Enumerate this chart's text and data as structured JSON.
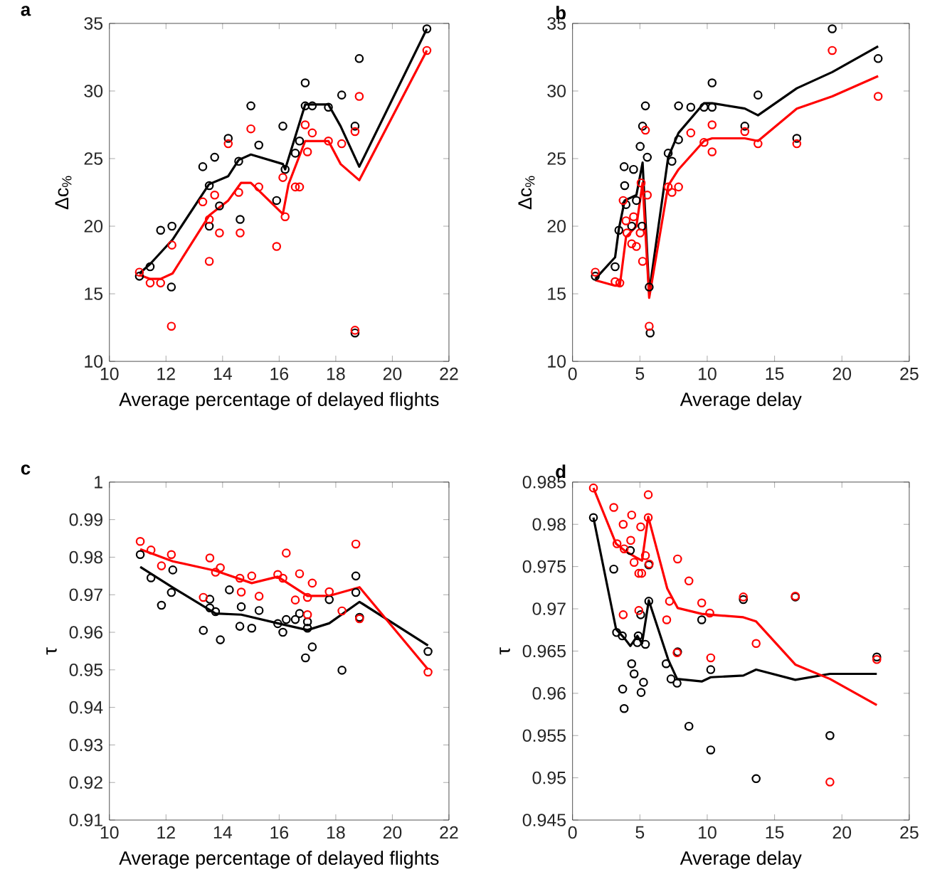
{
  "chart_data": [
    {
      "type": "scatter",
      "title": "a",
      "xlabel": "Average percentage of delayed flights",
      "ylabel": "Δc$_{%}$",
      "xlim": [
        10,
        22
      ],
      "xticks": [
        10,
        12,
        14,
        16,
        18,
        20,
        22
      ],
      "ylim": [
        10,
        35
      ],
      "yticks": [
        10,
        15,
        20,
        25,
        30,
        35
      ],
      "series": [
        {
          "marker": "circle",
          "color": "#000000",
          "x": [
            11.06,
            11.44,
            11.81,
            12.19,
            12.21,
            13.3,
            13.53,
            13.53,
            13.72,
            13.89,
            14.2,
            14.57,
            14.62,
            15.0,
            15.28,
            15.91,
            16.13,
            16.21,
            16.57,
            16.72,
            16.92,
            16.92,
            17.17,
            17.74,
            18.21,
            18.68,
            18.68,
            18.83,
            21.22
          ],
          "values": [
            16.3,
            17.0,
            19.7,
            15.5,
            20.0,
            24.4,
            23.0,
            20.0,
            25.1,
            21.5,
            26.5,
            24.8,
            20.5,
            28.9,
            26.0,
            21.9,
            27.4,
            24.2,
            25.4,
            26.3,
            30.6,
            28.9,
            28.9,
            28.8,
            29.7,
            27.4,
            12.1,
            32.4,
            34.6
          ]
        },
        {
          "marker": "circle",
          "color": "#ff0000",
          "x": [
            11.06,
            11.44,
            11.81,
            12.19,
            12.21,
            13.3,
            13.53,
            13.53,
            13.72,
            13.89,
            14.2,
            14.57,
            14.62,
            15.0,
            15.28,
            15.91,
            16.13,
            16.21,
            16.57,
            16.72,
            16.92,
            17.0,
            17.17,
            17.74,
            18.21,
            18.68,
            18.68,
            18.83,
            21.22
          ],
          "values": [
            16.6,
            15.8,
            15.8,
            12.6,
            18.6,
            21.8,
            20.5,
            17.4,
            22.3,
            19.5,
            26.1,
            22.5,
            19.5,
            27.2,
            22.9,
            18.5,
            23.6,
            20.7,
            22.9,
            22.9,
            27.5,
            25.5,
            26.9,
            26.3,
            26.1,
            27.0,
            12.3,
            29.6,
            33.0
          ]
        },
        {
          "type": "line",
          "color": "#000000",
          "x": [
            11.06,
            11.44,
            12.23,
            13.52,
            14.2,
            14.57,
            15.0,
            16.13,
            16.21,
            16.92,
            17.74,
            18.17,
            18.83,
            21.22
          ],
          "values": [
            16.5,
            17.2,
            19.0,
            23.1,
            23.7,
            24.9,
            25.3,
            24.6,
            24.2,
            29.0,
            29.0,
            27.4,
            24.4,
            34.6
          ]
        },
        {
          "type": "line",
          "color": "#ff0000",
          "x": [
            11.06,
            11.44,
            11.81,
            12.23,
            13.53,
            14.2,
            14.65,
            15.0,
            16.13,
            16.33,
            16.92,
            17.74,
            18.17,
            18.83,
            21.22
          ],
          "values": [
            16.4,
            16.1,
            16.1,
            16.5,
            20.8,
            21.9,
            23.2,
            23.2,
            20.9,
            23.1,
            26.3,
            26.3,
            24.6,
            23.4,
            33.0
          ]
        }
      ]
    },
    {
      "type": "scatter",
      "title": "b",
      "xlabel": "Average delay",
      "ylabel": "Δc$_{%}$",
      "xlim": [
        0,
        25
      ],
      "xticks": [
        0,
        5,
        10,
        15,
        20,
        25
      ],
      "ylim": [
        10,
        35
      ],
      "yticks": [
        10,
        15,
        20,
        25,
        30,
        35
      ],
      "series": [
        {
          "marker": "circle",
          "color": "#000000",
          "x": [
            1.69,
            3.16,
            3.44,
            3.83,
            3.87,
            3.97,
            4.39,
            4.53,
            4.74,
            5.02,
            5.2,
            5.16,
            5.41,
            5.55,
            5.69,
            5.76,
            7.1,
            7.38,
            7.87,
            7.87,
            8.78,
            9.76,
            10.36,
            10.36,
            12.79,
            13.77,
            16.65,
            19.28,
            22.69
          ],
          "values": [
            16.3,
            17.0,
            19.7,
            24.4,
            23.0,
            21.6,
            20.0,
            24.2,
            21.9,
            25.9,
            27.4,
            20.0,
            28.9,
            25.1,
            15.5,
            12.1,
            25.4,
            24.8,
            26.4,
            28.9,
            28.8,
            28.8,
            30.6,
            28.8,
            27.4,
            29.7,
            26.5,
            34.6,
            32.4
          ]
        },
        {
          "marker": "circle",
          "color": "#ff0000",
          "x": [
            1.69,
            3.16,
            3.51,
            3.76,
            3.97,
            4.04,
            4.39,
            4.53,
            4.74,
            5.02,
            5.09,
            5.2,
            5.41,
            5.55,
            5.69,
            7.1,
            7.38,
            7.87,
            8.78,
            9.76,
            10.36,
            10.36,
            12.79,
            13.77,
            16.65,
            19.28,
            22.69
          ],
          "values": [
            16.6,
            15.9,
            15.8,
            21.9,
            20.4,
            19.5,
            18.7,
            20.7,
            18.5,
            19.5,
            23.2,
            17.4,
            27.1,
            22.3,
            12.6,
            22.9,
            22.5,
            22.9,
            26.9,
            26.2,
            27.5,
            25.5,
            27.0,
            26.1,
            26.1,
            33.0,
            29.6
          ]
        },
        {
          "type": "line",
          "color": "#000000",
          "x": [
            1.69,
            3.16,
            3.44,
            3.87,
            4.74,
            5.2,
            5.69,
            7.1,
            7.87,
            9.76,
            10.36,
            12.79,
            13.77,
            16.65,
            19.28,
            22.69
          ],
          "values": [
            16.1,
            17.7,
            19.8,
            21.9,
            22.3,
            24.7,
            15.1,
            25.1,
            26.9,
            29.1,
            29.1,
            28.7,
            28.2,
            30.2,
            31.4,
            33.3
          ]
        },
        {
          "type": "line",
          "color": "#ff0000",
          "x": [
            1.69,
            3.16,
            3.51,
            3.97,
            4.74,
            5.2,
            5.69,
            7.1,
            7.87,
            9.76,
            10.36,
            12.79,
            13.77,
            16.65,
            19.28,
            22.69
          ],
          "values": [
            16.0,
            15.6,
            15.6,
            19.2,
            20.0,
            23.2,
            14.7,
            23.0,
            24.2,
            26.3,
            26.5,
            26.5,
            26.3,
            28.7,
            29.6,
            31.1
          ]
        }
      ]
    },
    {
      "type": "scatter",
      "title": "c",
      "xlabel": "Average percentage of delayed flights",
      "ylabel": "τ",
      "xlim": [
        10,
        22
      ],
      "xticks": [
        10,
        12,
        14,
        16,
        18,
        20,
        22
      ],
      "ylim": [
        0.91,
        1
      ],
      "yticks": [
        0.91,
        0.92,
        0.93,
        0.94,
        0.95,
        0.96,
        0.97,
        0.98,
        0.99,
        1
      ],
      "series": [
        {
          "marker": "circle",
          "color": "#000000",
          "x": [
            11.09,
            11.47,
            11.84,
            12.19,
            12.24,
            13.32,
            13.55,
            13.55,
            13.75,
            13.92,
            14.24,
            14.61,
            14.66,
            15.03,
            15.29,
            15.95,
            16.13,
            16.25,
            16.57,
            16.72,
            16.93,
            17.0,
            17.0,
            17.17,
            17.77,
            18.22,
            18.71,
            18.71,
            18.84,
            21.26
          ],
          "values": [
            0.9807,
            0.9745,
            0.9672,
            0.9706,
            0.9766,
            0.9605,
            0.9688,
            0.9665,
            0.9655,
            0.958,
            0.9713,
            0.9616,
            0.9668,
            0.9611,
            0.9658,
            0.9623,
            0.96,
            0.9634,
            0.9634,
            0.965,
            0.9532,
            0.9628,
            0.9611,
            0.9561,
            0.9687,
            0.9499,
            0.975,
            0.9706,
            0.964,
            0.9549
          ]
        },
        {
          "marker": "circle",
          "color": "#ff0000",
          "x": [
            11.09,
            11.47,
            11.84,
            12.19,
            13.32,
            13.55,
            13.75,
            13.92,
            14.61,
            14.66,
            15.03,
            15.29,
            15.95,
            16.13,
            16.25,
            16.57,
            16.72,
            17.0,
            17.0,
            17.17,
            17.77,
            18.22,
            18.71,
            18.84,
            21.26
          ],
          "values": [
            0.9842,
            0.9819,
            0.9777,
            0.9807,
            0.9693,
            0.9798,
            0.976,
            0.9772,
            0.9744,
            0.9707,
            0.975,
            0.9696,
            0.9754,
            0.9744,
            0.9811,
            0.9686,
            0.9756,
            0.9693,
            0.9647,
            0.9731,
            0.9708,
            0.9657,
            0.9835,
            0.9636,
            0.9494
          ]
        },
        {
          "type": "line",
          "color": "#000000",
          "x": [
            11.09,
            12.24,
            13.75,
            14.66,
            15.95,
            17.0,
            17.77,
            18.84,
            21.26
          ],
          "values": [
            0.9774,
            0.9719,
            0.965,
            0.9647,
            0.9624,
            0.9606,
            0.9624,
            0.9681,
            0.9565
          ]
        },
        {
          "type": "line",
          "color": "#ff0000",
          "x": [
            11.09,
            12.24,
            13.75,
            15.03,
            15.95,
            17.0,
            17.77,
            18.84,
            21.26
          ],
          "values": [
            0.9821,
            0.9789,
            0.9764,
            0.9731,
            0.9748,
            0.9697,
            0.9697,
            0.972,
            0.9501
          ]
        }
      ]
    },
    {
      "type": "scatter",
      "title": "d",
      "xlabel": "Average delay",
      "ylabel": "τ",
      "xlim": [
        0,
        25
      ],
      "xticks": [
        0,
        5,
        10,
        15,
        20,
        25
      ],
      "ylim": [
        0.945,
        0.985
      ],
      "yticks": [
        0.945,
        0.95,
        0.955,
        0.96,
        0.965,
        0.97,
        0.975,
        0.98,
        0.985
      ],
      "series": [
        {
          "marker": "circle",
          "color": "#000000",
          "x": [
            1.55,
            3.06,
            3.27,
            3.69,
            3.83,
            3.72,
            4.29,
            4.39,
            4.57,
            4.81,
            4.88,
            5.06,
            5.09,
            5.27,
            5.41,
            5.66,
            5.66,
            6.95,
            7.31,
            7.76,
            7.8,
            8.64,
            9.59,
            10.26,
            10.26,
            12.68,
            13.63,
            16.54,
            19.11,
            22.59
          ],
          "values": [
            0.9808,
            0.9747,
            0.9672,
            0.9668,
            0.9582,
            0.9605,
            0.9769,
            0.9635,
            0.9623,
            0.966,
            0.9668,
            0.9693,
            0.9601,
            0.9613,
            0.9658,
            0.9752,
            0.9709,
            0.9635,
            0.9617,
            0.9612,
            0.9649,
            0.9561,
            0.9687,
            0.9533,
            0.9628,
            0.9711,
            0.9499,
            0.9714,
            0.955,
            0.9643
          ]
        },
        {
          "marker": "circle",
          "color": "#ff0000",
          "x": [
            1.55,
            3.06,
            3.3,
            3.76,
            3.83,
            4.32,
            4.39,
            4.57,
            3.76,
            4.92,
            5.06,
            5.13,
            4.92,
            5.41,
            5.62,
            5.62,
            5.69,
            6.99,
            7.2,
            7.76,
            7.8,
            8.64,
            9.59,
            10.19,
            10.26,
            12.68,
            13.63,
            16.54,
            19.11,
            22.59
          ],
          "values": [
            0.9843,
            0.982,
            0.9777,
            0.98,
            0.9771,
            0.9781,
            0.9811,
            0.9755,
            0.9693,
            0.9742,
            0.9797,
            0.9742,
            0.9698,
            0.9763,
            0.9835,
            0.9808,
            0.9753,
            0.9687,
            0.9709,
            0.9648,
            0.9759,
            0.9733,
            0.9707,
            0.9695,
            0.9642,
            0.9714,
            0.9659,
            0.9715,
            0.9495,
            0.964
          ]
        },
        {
          "type": "line",
          "color": "#000000",
          "x": [
            1.55,
            3.23,
            3.86,
            4.29,
            4.81,
            5.16,
            5.66,
            7.1,
            7.76,
            9.59,
            10.26,
            12.68,
            13.63,
            16.54,
            19.11,
            22.59
          ],
          "values": [
            0.9808,
            0.9676,
            0.9665,
            0.9656,
            0.9668,
            0.9659,
            0.971,
            0.964,
            0.9617,
            0.9614,
            0.9619,
            0.9621,
            0.9628,
            0.9616,
            0.9623,
            0.9623
          ]
        },
        {
          "type": "line",
          "color": "#ff0000",
          "x": [
            1.55,
            3.23,
            3.86,
            4.81,
            5.16,
            5.62,
            7.03,
            7.8,
            9.59,
            10.26,
            12.68,
            13.63,
            16.54,
            19.11,
            22.59
          ],
          "values": [
            0.9843,
            0.9777,
            0.9769,
            0.976,
            0.9757,
            0.9809,
            0.9724,
            0.9701,
            0.9694,
            0.9693,
            0.969,
            0.9685,
            0.9634,
            0.9617,
            0.9586
          ]
        }
      ]
    }
  ]
}
